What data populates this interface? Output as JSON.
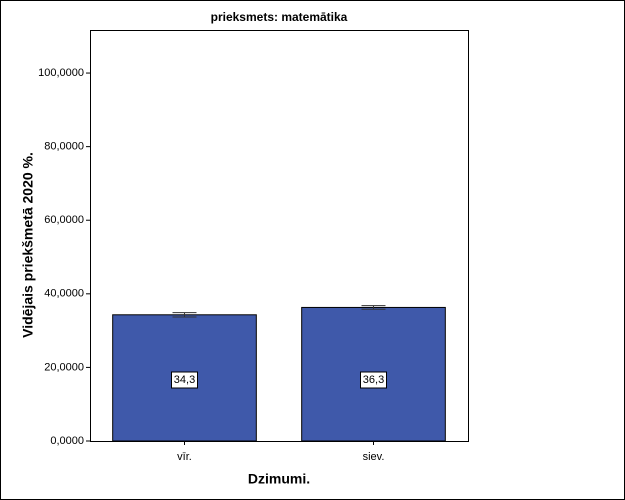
{
  "chart_data": {
    "type": "bar",
    "title": "prieksmets: matemātika",
    "x_label": "Dzimumi.",
    "y_label": "Vidējais priekšmetā 2020 %.",
    "categories": [
      "vīr.",
      "siev."
    ],
    "values": [
      34.3,
      36.3
    ],
    "value_labels": [
      "34,3",
      "36,3"
    ],
    "errors": [
      0.6,
      0.5
    ],
    "color": "#3f59aa",
    "ylim": [
      0,
      111.7
    ],
    "yticks": [
      {
        "value": 0,
        "label": "0,0000"
      },
      {
        "value": 20,
        "label": "20,0000"
      },
      {
        "value": 40,
        "label": "40,0000"
      },
      {
        "value": 60,
        "label": "60,0000"
      },
      {
        "value": 80,
        "label": "80,0000"
      },
      {
        "value": 100,
        "label": "100,0000"
      }
    ],
    "grid": false
  }
}
